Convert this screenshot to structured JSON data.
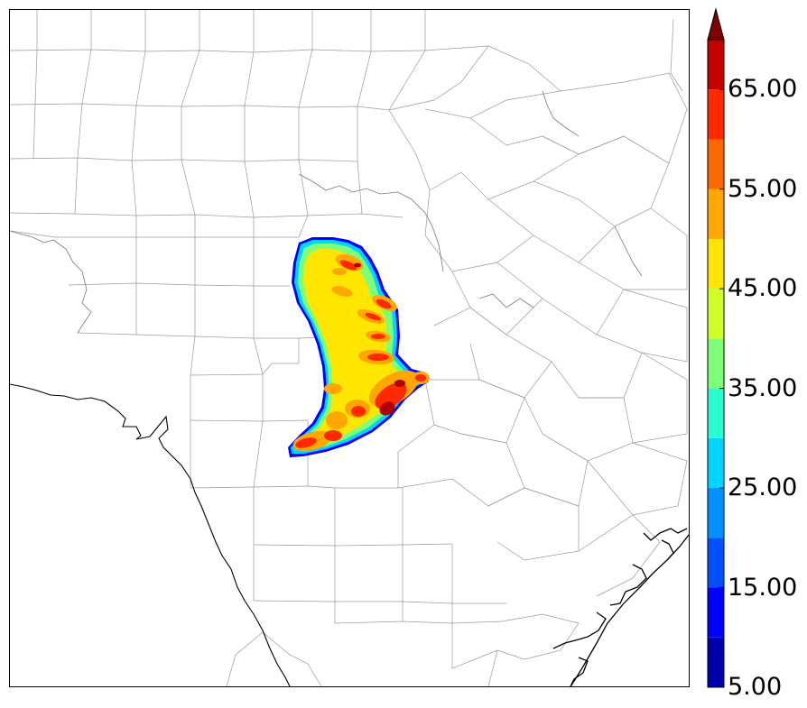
{
  "map": {
    "type": "radar-reflectivity-county-map",
    "background": "#ffffff",
    "county_line_color": "#9a9a9a",
    "coast_line_color": "#000000"
  },
  "colorbar": {
    "extend": "max",
    "min": 5,
    "max": 70,
    "step": 5,
    "levels": [
      {
        "from": 5,
        "to": 10,
        "color": "#0000aa"
      },
      {
        "from": 10,
        "to": 15,
        "color": "#0000ff"
      },
      {
        "from": 15,
        "to": 20,
        "color": "#0050ff"
      },
      {
        "from": 20,
        "to": 25,
        "color": "#0090ff"
      },
      {
        "from": 25,
        "to": 30,
        "color": "#00d4ff"
      },
      {
        "from": 30,
        "to": 35,
        "color": "#29ffce"
      },
      {
        "from": 35,
        "to": 40,
        "color": "#7dff7a"
      },
      {
        "from": 40,
        "to": 45,
        "color": "#ceff29"
      },
      {
        "from": 45,
        "to": 50,
        "color": "#ffe600"
      },
      {
        "from": 50,
        "to": 55,
        "color": "#ffa700"
      },
      {
        "from": 55,
        "to": 60,
        "color": "#ff6800"
      },
      {
        "from": 60,
        "to": 65,
        "color": "#ff2900"
      },
      {
        "from": 65,
        "to": 70,
        "color": "#c40000"
      }
    ],
    "extend_color": "#800000",
    "tick_labels": [
      "5.00",
      "15.00",
      "25.00",
      "35.00",
      "45.00",
      "55.00",
      "65.00"
    ],
    "tick_values": [
      5,
      15,
      25,
      35,
      45,
      55,
      65
    ]
  }
}
